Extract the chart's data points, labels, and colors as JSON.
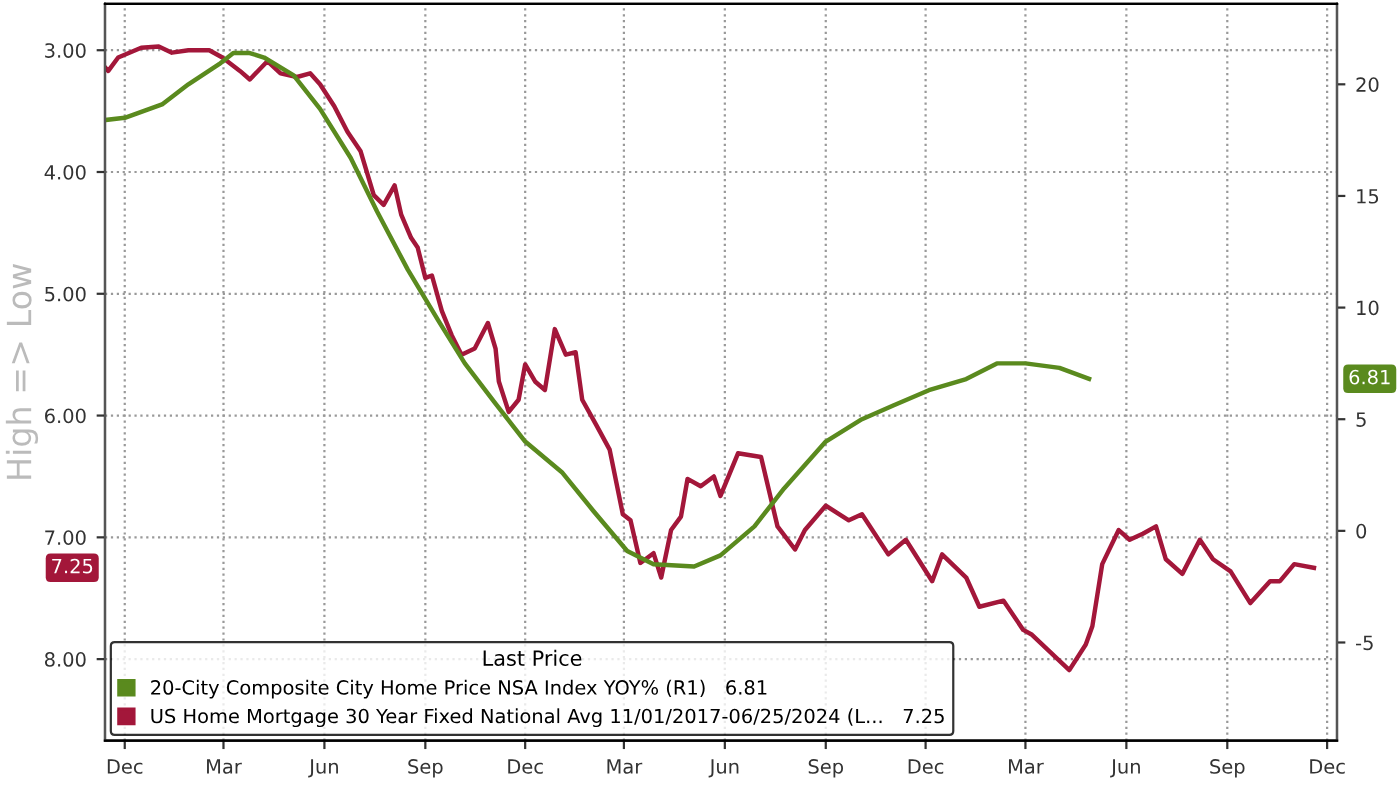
{
  "chart_data": {
    "type": "line",
    "ylabel": "High => Low",
    "legend_title": "Last Price",
    "legend": "bottom left",
    "grid": true,
    "marker": "none",
    "line_style": "solid",
    "xlim": [
      "2021-11-13",
      "2024-12-10"
    ],
    "xticks": [
      {
        "value": "2021-12-01",
        "label": "Dec"
      },
      {
        "value": "2022-03-01",
        "label": "Mar"
      },
      {
        "value": "2022-06-01",
        "label": "Jun"
      },
      {
        "value": "2022-09-01",
        "label": "Sep"
      },
      {
        "value": "2022-12-01",
        "label": "Dec"
      },
      {
        "value": "2023-03-01",
        "label": "Mar"
      },
      {
        "value": "2023-06-01",
        "label": "Jun"
      },
      {
        "value": "2023-09-01",
        "label": "Sep"
      },
      {
        "value": "2023-12-01",
        "label": "Dec"
      },
      {
        "value": "2024-03-01",
        "label": "Mar"
      },
      {
        "value": "2024-06-01",
        "label": "Jun"
      },
      {
        "value": "2024-09-01",
        "label": "Sep"
      },
      {
        "value": "2024-12-01",
        "label": "Dec"
      }
    ],
    "ylim": [
      8.67,
      2.62
    ],
    "yticks": [
      {
        "value": 3,
        "label": "3.00"
      },
      {
        "value": 4,
        "label": "4.00"
      },
      {
        "value": 5,
        "label": "5.00"
      },
      {
        "value": 6,
        "label": "6.00"
      },
      {
        "value": 7,
        "label": "7.00"
      },
      {
        "value": 8,
        "label": "8.00"
      }
    ],
    "y2lim": [
      -9.4,
      23.6
    ],
    "y2ticks": [
      -5,
      0,
      5,
      10,
      15,
      20
    ],
    "annotations": [
      "6.81",
      "7.25"
    ],
    "series": [
      {
        "name": "20-City Composite City Home Price NSA Index YOY% (R1)   6.81",
        "color": "#5a8a1e",
        "axis": "y2",
        "x": [
          "2021-11-13",
          "2021-12-01",
          "2022-01-04",
          "2022-01-28",
          "2022-02-25",
          "2022-03-10",
          "2022-03-25",
          "2022-04-07",
          "2022-05-04",
          "2022-05-28",
          "2022-06-25",
          "2022-07-19",
          "2022-08-16",
          "2022-09-13",
          "2022-10-07",
          "2022-11-04",
          "2022-12-01",
          "2023-01-04",
          "2023-02-01",
          "2023-03-04",
          "2023-03-28",
          "2023-05-04",
          "2023-05-28",
          "2023-06-28",
          "2023-07-25",
          "2023-09-01",
          "2023-10-04",
          "2023-11-01",
          "2023-12-04",
          "2024-01-07",
          "2024-02-04",
          "2024-03-01",
          "2024-04-01",
          "2024-04-28"
        ],
        "values": [
          18.4,
          18.5,
          19.1,
          20.0,
          20.9,
          21.4,
          21.4,
          21.2,
          20.4,
          18.9,
          16.7,
          14.3,
          11.7,
          9.4,
          7.5,
          5.7,
          4.0,
          2.6,
          0.9,
          -0.9,
          -1.5,
          -1.6,
          -1.1,
          0.2,
          1.9,
          4.0,
          5.0,
          5.6,
          6.3,
          6.8,
          7.5,
          7.5,
          7.3,
          6.81
        ]
      },
      {
        "name": "US Home Mortgage 30 Year Fixed National Avg 11/01/2017-06/25/2024 (L...   7.25",
        "color": "#a3173a",
        "x": [
          "2021-11-13",
          "2021-11-16",
          "2021-11-25",
          "2021-12-16",
          "2022-01-01",
          "2022-01-13",
          "2022-01-28",
          "2022-02-16",
          "2022-02-28",
          "2022-03-16",
          "2022-03-25",
          "2022-04-10",
          "2022-04-22",
          "2022-05-07",
          "2022-05-19",
          "2022-05-28",
          "2022-06-10",
          "2022-06-22",
          "2022-07-04",
          "2022-07-16",
          "2022-07-25",
          "2022-08-04",
          "2022-08-10",
          "2022-08-19",
          "2022-08-25",
          "2022-09-01",
          "2022-09-07",
          "2022-09-16",
          "2022-09-25",
          "2022-10-04",
          "2022-10-16",
          "2022-10-28",
          "2022-11-04",
          "2022-11-07",
          "2022-11-16",
          "2022-11-25",
          "2022-12-01",
          "2022-12-10",
          "2022-12-19",
          "2022-12-28",
          "2023-01-07",
          "2023-01-16",
          "2023-01-22",
          "2023-02-04",
          "2023-02-16",
          "2023-02-28",
          "2023-03-07",
          "2023-03-16",
          "2023-03-28",
          "2023-04-04",
          "2023-04-13",
          "2023-04-22",
          "2023-04-28",
          "2023-05-10",
          "2023-05-22",
          "2023-05-28",
          "2023-06-13",
          "2023-07-04",
          "2023-07-19",
          "2023-08-04",
          "2023-08-13",
          "2023-09-01",
          "2023-09-22",
          "2023-10-04",
          "2023-10-28",
          "2023-11-13",
          "2023-12-07",
          "2023-12-16",
          "2024-01-07",
          "2024-01-19",
          "2024-02-10",
          "2024-02-28",
          "2024-03-07",
          "2024-04-10",
          "2024-04-25",
          "2024-05-01",
          "2024-05-10",
          "2024-05-25",
          "2024-06-04",
          "2024-06-16",
          "2024-06-28",
          "2024-07-07",
          "2024-07-22",
          "2024-08-07",
          "2024-08-19",
          "2024-09-04",
          "2024-09-22",
          "2024-10-10",
          "2024-10-19",
          "2024-11-01",
          "2024-11-19"
        ],
        "values": [
          3.14,
          3.17,
          3.06,
          2.98,
          2.97,
          3.02,
          3.0,
          3.0,
          3.06,
          3.17,
          3.24,
          3.09,
          3.19,
          3.22,
          3.19,
          3.28,
          3.46,
          3.67,
          3.83,
          4.19,
          4.27,
          4.11,
          4.35,
          4.54,
          4.62,
          4.87,
          4.85,
          5.14,
          5.34,
          5.5,
          5.45,
          5.24,
          5.45,
          5.72,
          5.97,
          5.87,
          5.58,
          5.72,
          5.79,
          5.29,
          5.5,
          5.48,
          5.87,
          6.08,
          6.28,
          6.81,
          6.86,
          7.21,
          7.13,
          7.33,
          6.94,
          6.83,
          6.52,
          6.58,
          6.5,
          6.66,
          6.31,
          6.34,
          6.91,
          7.1,
          6.94,
          6.74,
          6.86,
          6.81,
          7.14,
          7.02,
          7.36,
          7.14,
          7.33,
          7.57,
          7.52,
          7.76,
          7.8,
          8.09,
          7.88,
          7.73,
          7.22,
          6.94,
          7.02,
          6.97,
          6.91,
          7.18,
          7.3,
          7.02,
          7.18,
          7.28,
          7.54,
          7.36,
          7.36,
          7.22,
          7.25
        ]
      }
    ]
  }
}
